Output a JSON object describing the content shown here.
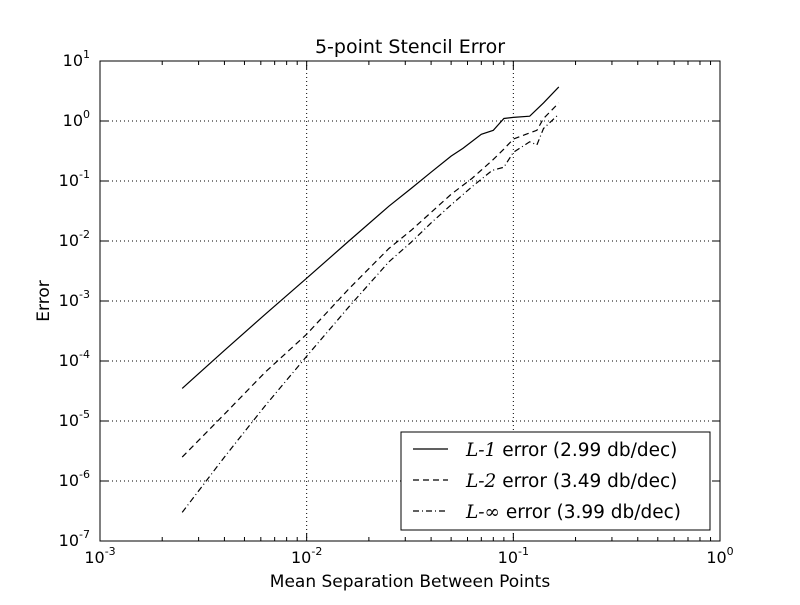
{
  "chart_data": {
    "type": "line",
    "title": "5-point Stencil Error",
    "xlabel": "Mean Separation Between Points",
    "ylabel": "Error",
    "xscale": "log",
    "yscale": "log",
    "xlim": [
      0.001,
      1
    ],
    "ylim": [
      1e-07,
      10
    ],
    "grid": true,
    "legend_position": "lower-right",
    "x_ticks": [
      {
        "base": "10",
        "exp": "-3",
        "value": 0.001
      },
      {
        "base": "10",
        "exp": "-2",
        "value": 0.01
      },
      {
        "base": "10",
        "exp": "-1",
        "value": 0.1
      },
      {
        "base": "10",
        "exp": "0",
        "value": 1
      }
    ],
    "y_ticks": [
      {
        "base": "10",
        "exp": "1",
        "value": 10
      },
      {
        "base": "10",
        "exp": "0",
        "value": 1
      },
      {
        "base": "10",
        "exp": "-1",
        "value": 0.1
      },
      {
        "base": "10",
        "exp": "-2",
        "value": 0.01
      },
      {
        "base": "10",
        "exp": "-3",
        "value": 0.001
      },
      {
        "base": "10",
        "exp": "-4",
        "value": 0.0001
      },
      {
        "base": "10",
        "exp": "-5",
        "value": 1e-05
      },
      {
        "base": "10",
        "exp": "-6",
        "value": 1e-06
      },
      {
        "base": "10",
        "exp": "-7",
        "value": 1e-07
      }
    ],
    "series": [
      {
        "legend_math": "L-1",
        "legend_suffix": " error (2.99 db/dec)",
        "dash": "solid",
        "color": "#000000",
        "points": [
          [
            0.0025,
            3.5e-05
          ],
          [
            0.004,
            0.00015
          ],
          [
            0.0063,
            0.0006
          ],
          [
            0.01,
            0.0024
          ],
          [
            0.016,
            0.01
          ],
          [
            0.025,
            0.038
          ],
          [
            0.032,
            0.075
          ],
          [
            0.04,
            0.14
          ],
          [
            0.05,
            0.26
          ],
          [
            0.057,
            0.35
          ],
          [
            0.07,
            0.6
          ],
          [
            0.08,
            0.7
          ],
          [
            0.09,
            1.1
          ],
          [
            0.1,
            1.15
          ],
          [
            0.12,
            1.2
          ],
          [
            0.14,
            2.0
          ],
          [
            0.166,
            3.7
          ]
        ]
      },
      {
        "legend_math": "L-2",
        "legend_suffix": " error (3.49 db/dec)",
        "dash": "dashed",
        "color": "#000000",
        "points": [
          [
            0.0025,
            2.5e-06
          ],
          [
            0.004,
            1.3e-05
          ],
          [
            0.0063,
            6.5e-05
          ],
          [
            0.01,
            0.00028
          ],
          [
            0.016,
            0.0016
          ],
          [
            0.025,
            0.0075
          ],
          [
            0.032,
            0.015
          ],
          [
            0.04,
            0.03
          ],
          [
            0.05,
            0.06
          ],
          [
            0.063,
            0.11
          ],
          [
            0.079,
            0.22
          ],
          [
            0.09,
            0.34
          ],
          [
            0.1,
            0.5
          ],
          [
            0.115,
            0.6
          ],
          [
            0.13,
            0.7
          ],
          [
            0.14,
            1.1
          ],
          [
            0.166,
            2.0
          ]
        ]
      },
      {
        "legend_math": "L-∞",
        "legend_suffix": " error (3.99 db/dec)",
        "dash": "dashdot",
        "color": "#000000",
        "points": [
          [
            0.0025,
            3e-07
          ],
          [
            0.004,
            2.5e-06
          ],
          [
            0.0063,
            1.8e-05
          ],
          [
            0.01,
            0.00012
          ],
          [
            0.016,
            0.0008
          ],
          [
            0.025,
            0.0045
          ],
          [
            0.032,
            0.0095
          ],
          [
            0.04,
            0.02
          ],
          [
            0.05,
            0.04
          ],
          [
            0.063,
            0.08
          ],
          [
            0.079,
            0.15
          ],
          [
            0.09,
            0.17
          ],
          [
            0.1,
            0.3
          ],
          [
            0.12,
            0.45
          ],
          [
            0.13,
            0.4
          ],
          [
            0.14,
            0.75
          ],
          [
            0.166,
            1.3
          ]
        ]
      }
    ]
  }
}
